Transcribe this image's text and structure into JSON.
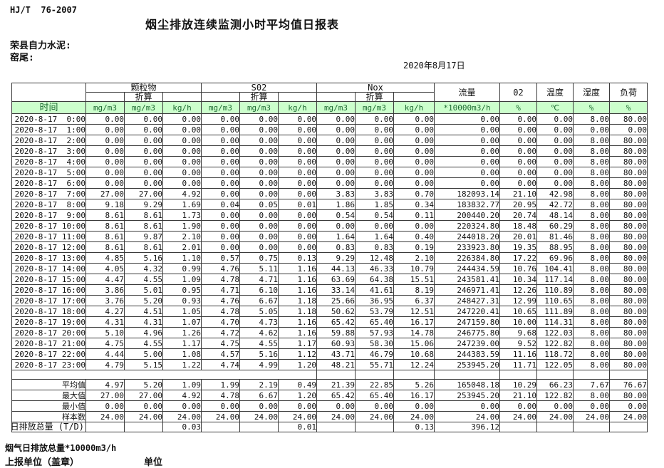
{
  "page": {
    "doc_code": "HJ/T  76-2007",
    "title": "烟尘排放连续监测小时平均值日报表",
    "company": "荣县自力水泥:",
    "location": "窑尾:",
    "date": "2020年8月17日",
    "footnote": "烟气日排放总量*10000m3/h",
    "report_unit": "上报单位（盖章）",
    "unit_label": "单位"
  },
  "colors": {
    "header_bg": "#ccffcc",
    "header_text": "#1e6b32",
    "border": "#3b3b3b",
    "text": "#111111"
  },
  "table": {
    "time_label": "时间",
    "conv_label": "折算",
    "groups": [
      {
        "label": "颗粒物"
      },
      {
        "label": "S02"
      },
      {
        "label": "Nox"
      }
    ],
    "right_headers": [
      "流量",
      "02",
      "温度",
      "湿度",
      "负荷"
    ],
    "units": [
      "mg/m3",
      "mg/m3",
      "kg/h",
      "mg/m3",
      "mg/m3",
      "kg/h",
      "mg/m3",
      "mg/m3",
      "kg/h",
      "*10000m3/h",
      "%",
      "℃",
      "%",
      "%"
    ],
    "rows": [
      {
        "time": "2020-8-17  0:00",
        "values": [
          "0.00",
          "0.00",
          "0.00",
          "0.00",
          "0.00",
          "0.00",
          "0.00",
          "0.00",
          "0.00",
          "0.00",
          "0.00",
          "0.00",
          "8.00",
          "80.00"
        ]
      },
      {
        "time": "2020-8-17  1:00",
        "values": [
          "0.00",
          "0.00",
          "0.00",
          "0.00",
          "0.00",
          "0.00",
          "0.00",
          "0.00",
          "0.00",
          "0.00",
          "0.00",
          "0.00",
          "0.00",
          "0.00"
        ]
      },
      {
        "time": "2020-8-17  2:00",
        "values": [
          "0.00",
          "0.00",
          "0.00",
          "0.00",
          "0.00",
          "0.00",
          "0.00",
          "0.00",
          "0.00",
          "0.00",
          "0.00",
          "0.00",
          "8.00",
          "80.00"
        ]
      },
      {
        "time": "2020-8-17  3:00",
        "values": [
          "0.00",
          "0.00",
          "0.00",
          "0.00",
          "0.00",
          "0.00",
          "0.00",
          "0.00",
          "0.00",
          "0.00",
          "0.00",
          "0.00",
          "8.00",
          "80.00"
        ]
      },
      {
        "time": "2020-8-17  4:00",
        "values": [
          "0.00",
          "0.00",
          "0.00",
          "0.00",
          "0.00",
          "0.00",
          "0.00",
          "0.00",
          "0.00",
          "0.00",
          "0.00",
          "0.00",
          "8.00",
          "80.00"
        ]
      },
      {
        "time": "2020-8-17  5:00",
        "values": [
          "0.00",
          "0.00",
          "0.00",
          "0.00",
          "0.00",
          "0.00",
          "0.00",
          "0.00",
          "0.00",
          "0.00",
          "0.00",
          "0.00",
          "8.00",
          "80.00"
        ]
      },
      {
        "time": "2020-8-17  6:00",
        "values": [
          "0.00",
          "0.00",
          "0.00",
          "0.00",
          "0.00",
          "0.00",
          "0.00",
          "0.00",
          "0.00",
          "0.00",
          "0.00",
          "0.00",
          "8.00",
          "80.00"
        ]
      },
      {
        "time": "2020-8-17  7:00",
        "values": [
          "27.00",
          "27.00",
          "4.92",
          "0.00",
          "0.00",
          "0.00",
          "3.83",
          "3.83",
          "0.70",
          "182093.14",
          "21.10",
          "42.98",
          "8.00",
          "80.00"
        ]
      },
      {
        "time": "2020-8-17  8:00",
        "values": [
          "9.18",
          "9.29",
          "1.69",
          "0.04",
          "0.05",
          "0.01",
          "1.86",
          "1.85",
          "0.34",
          "183832.77",
          "20.95",
          "42.72",
          "8.00",
          "80.00"
        ]
      },
      {
        "time": "2020-8-17  9:00",
        "values": [
          "8.61",
          "8.61",
          "1.73",
          "0.00",
          "0.00",
          "0.00",
          "0.54",
          "0.54",
          "0.11",
          "200440.20",
          "20.74",
          "48.14",
          "8.00",
          "80.00"
        ]
      },
      {
        "time": "2020-8-17 10:00",
        "values": [
          "8.61",
          "8.61",
          "1.90",
          "0.00",
          "0.00",
          "0.00",
          "0.00",
          "0.00",
          "0.00",
          "220324.80",
          "18.48",
          "60.29",
          "8.00",
          "80.00"
        ]
      },
      {
        "time": "2020-8-17 11:00",
        "values": [
          "8.61",
          "9.87",
          "2.10",
          "0.00",
          "0.00",
          "0.00",
          "1.64",
          "1.64",
          "0.40",
          "244018.20",
          "20.01",
          "81.46",
          "8.00",
          "80.00"
        ]
      },
      {
        "time": "2020-8-17 12:00",
        "values": [
          "8.61",
          "8.61",
          "2.01",
          "0.00",
          "0.00",
          "0.00",
          "0.83",
          "0.83",
          "0.19",
          "233923.80",
          "19.35",
          "88.95",
          "8.00",
          "80.00"
        ]
      },
      {
        "time": "2020-8-17 13:00",
        "values": [
          "4.85",
          "5.16",
          "1.10",
          "0.57",
          "0.75",
          "0.13",
          "9.29",
          "12.48",
          "2.10",
          "226384.80",
          "17.22",
          "69.96",
          "8.00",
          "80.00"
        ]
      },
      {
        "time": "2020-8-17 14:00",
        "values": [
          "4.05",
          "4.32",
          "0.99",
          "4.76",
          "5.11",
          "1.16",
          "44.13",
          "46.33",
          "10.79",
          "244434.59",
          "10.76",
          "104.41",
          "8.00",
          "80.00"
        ]
      },
      {
        "time": "2020-8-17 15:00",
        "values": [
          "4.47",
          "4.55",
          "1.09",
          "4.78",
          "4.71",
          "1.16",
          "63.69",
          "64.38",
          "15.51",
          "243581.41",
          "10.34",
          "117.14",
          "8.00",
          "80.00"
        ]
      },
      {
        "time": "2020-8-17 16:00",
        "values": [
          "3.86",
          "5.01",
          "0.95",
          "4.71",
          "6.10",
          "1.16",
          "33.14",
          "41.61",
          "8.19",
          "246971.41",
          "12.26",
          "110.89",
          "8.00",
          "80.00"
        ]
      },
      {
        "time": "2020-8-17 17:00",
        "values": [
          "3.76",
          "5.20",
          "0.93",
          "4.76",
          "6.67",
          "1.18",
          "25.66",
          "36.95",
          "6.37",
          "248427.31",
          "12.99",
          "110.65",
          "8.00",
          "80.00"
        ]
      },
      {
        "time": "2020-8-17 18:00",
        "values": [
          "4.27",
          "4.51",
          "1.05",
          "4.78",
          "5.05",
          "1.18",
          "50.62",
          "53.79",
          "12.51",
          "247220.41",
          "10.65",
          "111.89",
          "8.00",
          "80.00"
        ]
      },
      {
        "time": "2020-8-17 19:00",
        "values": [
          "4.31",
          "4.31",
          "1.07",
          "4.70",
          "4.73",
          "1.16",
          "65.42",
          "65.40",
          "16.17",
          "247159.80",
          "10.00",
          "114.31",
          "8.00",
          "80.00"
        ]
      },
      {
        "time": "2020-8-17 20:00",
        "values": [
          "5.10",
          "4.96",
          "1.26",
          "4.72",
          "4.62",
          "1.16",
          "59.88",
          "57.93",
          "14.78",
          "246775.80",
          "9.68",
          "122.03",
          "8.00",
          "80.00"
        ]
      },
      {
        "time": "2020-8-17 21:00",
        "values": [
          "4.75",
          "4.55",
          "1.17",
          "4.75",
          "4.55",
          "1.17",
          "60.93",
          "58.30",
          "15.06",
          "247239.00",
          "9.52",
          "122.82",
          "8.00",
          "80.00"
        ]
      },
      {
        "time": "2020-8-17 22:00",
        "values": [
          "4.44",
          "5.00",
          "1.08",
          "4.57",
          "5.16",
          "1.12",
          "43.71",
          "46.79",
          "10.68",
          "244383.59",
          "11.16",
          "118.72",
          "8.00",
          "80.00"
        ]
      },
      {
        "time": "2020-8-17 23:00",
        "values": [
          "4.79",
          "5.15",
          "1.22",
          "4.74",
          "4.99",
          "1.20",
          "48.21",
          "55.71",
          "12.24",
          "253945.20",
          "11.71",
          "122.05",
          "8.00",
          "80.00"
        ]
      }
    ],
    "summary": [
      {
        "label": "平均值",
        "values": [
          "4.97",
          "5.20",
          "1.09",
          "1.99",
          "2.19",
          "0.49",
          "21.39",
          "22.85",
          "5.26",
          "165048.18",
          "10.29",
          "66.23",
          "7.67",
          "76.67"
        ]
      },
      {
        "label": "最大值",
        "values": [
          "27.00",
          "27.00",
          "4.92",
          "4.78",
          "6.67",
          "1.20",
          "65.42",
          "65.40",
          "16.17",
          "253945.20",
          "21.10",
          "122.82",
          "8.00",
          "80.00"
        ]
      },
      {
        "label": "最小值",
        "values": [
          "0.00",
          "0.00",
          "0.00",
          "0.00",
          "0.00",
          "0.00",
          "0.00",
          "0.00",
          "0.00",
          "0.00",
          "0.00",
          "0.00",
          "0.00",
          "0.00"
        ]
      },
      {
        "label": "样本数",
        "values": [
          "24.00",
          "24.00",
          "24.00",
          "24.00",
          "24.00",
          "24.00",
          "24.00",
          "24.00",
          "24.00",
          "24.00",
          "24.00",
          "24.00",
          "24.00",
          "24.00"
        ]
      }
    ],
    "total_row": {
      "label": "日排放总量 (T/D)",
      "values": [
        "",
        "",
        "0.03",
        "",
        "",
        "0.01",
        "",
        "",
        "0.13",
        "396.12",
        "",
        "",
        "",
        ""
      ]
    }
  }
}
